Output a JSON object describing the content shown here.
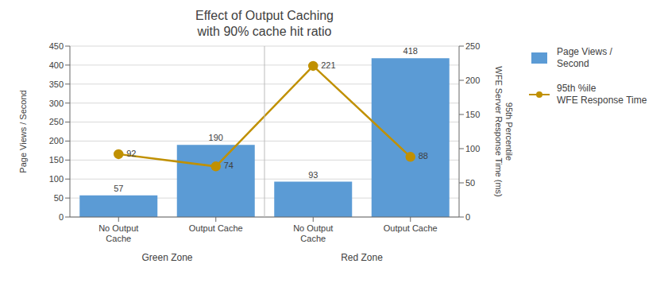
{
  "chart_data": {
    "type": "bar",
    "title": "Effect of Output Caching\nwith 90% cache hit ratio",
    "categories": [
      "No Output\nCache",
      "Output Cache",
      "No Output\nCache",
      "Output Cache"
    ],
    "series": [
      {
        "name": "Page Views /\nSecond",
        "type": "bar",
        "color": "#5B9BD5",
        "values": [
          57,
          190,
          93,
          418
        ]
      },
      {
        "name": "95th %ile\nWFE Response Time",
        "type": "line",
        "color": "#C09000",
        "marker": "circle",
        "axis": "y2",
        "values": [
          92,
          74,
          221,
          88
        ]
      }
    ],
    "y_label": "Page Views / Second",
    "y2_label": "95th Percentile\nWFE Server Response Time (ms)",
    "ylim": [
      0,
      450
    ],
    "yticks": [
      0,
      50,
      100,
      150,
      200,
      250,
      300,
      350,
      400,
      450
    ],
    "y2lim": [
      0,
      250
    ],
    "y2ticks": [
      0,
      50,
      100,
      150,
      200,
      250
    ],
    "grid": true,
    "legend": "right",
    "data_labels": true,
    "annotations": [
      "Green Zone",
      "Red Zone"
    ]
  }
}
